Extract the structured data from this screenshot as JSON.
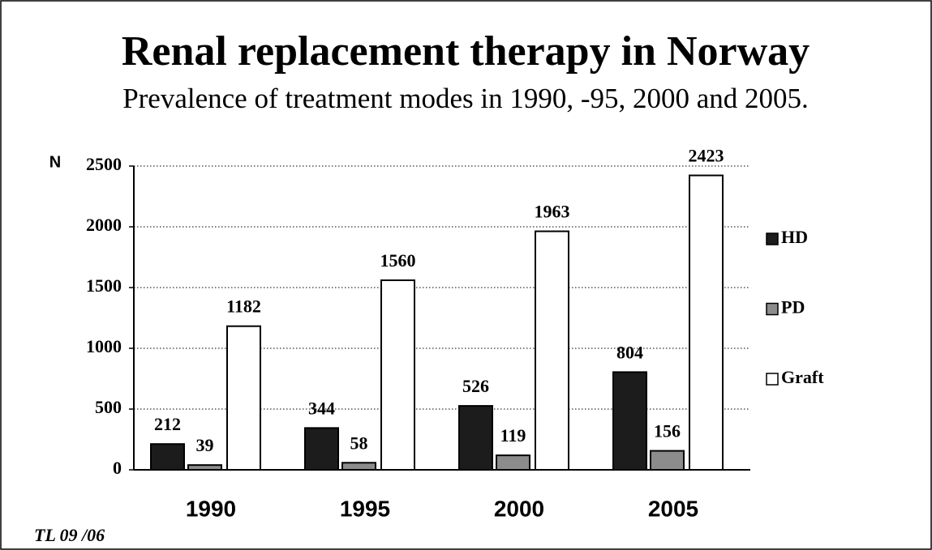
{
  "chart_data": {
    "type": "bar",
    "title": "Renal replacement therapy in Norway",
    "subtitle": "Prevalence of treatment modes in 1990, -95, 2000 and 2005.",
    "y_label": "N",
    "categories": [
      "1990",
      "1995",
      "2000",
      "2005"
    ],
    "series": [
      {
        "name": "HD",
        "color": "#1c1c1c",
        "values": [
          212,
          344,
          526,
          804
        ]
      },
      {
        "name": "PD",
        "color": "#8c8c8c",
        "values": [
          39,
          58,
          119,
          156
        ]
      },
      {
        "name": "Graft",
        "color": "#ffffff",
        "values": [
          1182,
          1560,
          1963,
          2423
        ]
      }
    ],
    "ylim": [
      0,
      2500
    ],
    "yticks": [
      0,
      500,
      1000,
      1500,
      2000,
      2500
    ],
    "grid": true,
    "legend": "right",
    "footnote": "TL 09 /06"
  }
}
